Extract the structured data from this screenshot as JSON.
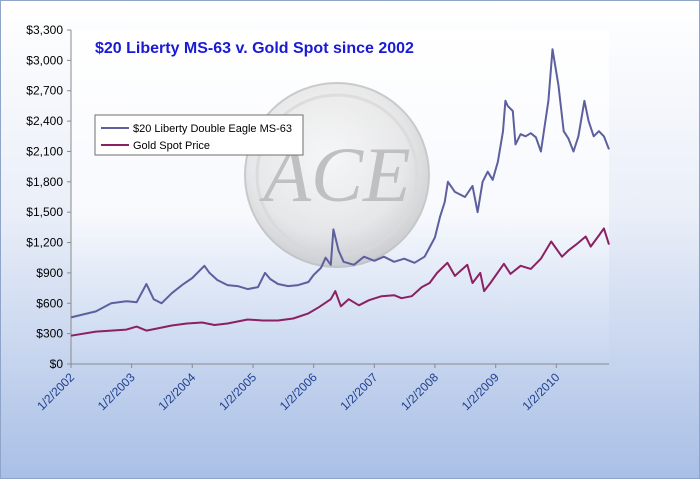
{
  "chart_data": {
    "type": "line",
    "title": "$20 Liberty MS-63 v. Gold Spot since 2002",
    "xlabel": "",
    "ylabel": "",
    "ylim": [
      0,
      3300
    ],
    "y_ticks": [
      "$0",
      "$300",
      "$600",
      "$900",
      "$1,200",
      "$1,500",
      "$1,800",
      "$2,100",
      "$2,400",
      "$2,700",
      "$3,000",
      "$3,300"
    ],
    "y_tick_values": [
      0,
      300,
      600,
      900,
      1200,
      1500,
      1800,
      2100,
      2400,
      2700,
      3000,
      3300
    ],
    "x_tick_labels": [
      "1/2/2002",
      "1/2/2003",
      "1/2/2004",
      "1/2/2005",
      "1/2/2006",
      "1/2/2007",
      "1/2/2008",
      "1/2/2009",
      "1/2/2010"
    ],
    "xlim": [
      "2002-01-02",
      "2010-11-15"
    ],
    "grid": false,
    "legend_position": "upper-left",
    "watermark": "ACE",
    "series": [
      {
        "name": "$20 Liberty Double Eagle MS-63",
        "color": "#5d5f9e",
        "points": [
          [
            "2002-01-02",
            460
          ],
          [
            "2002-06-01",
            520
          ],
          [
            "2002-09-01",
            600
          ],
          [
            "2002-12-01",
            620
          ],
          [
            "2003-02-01",
            610
          ],
          [
            "2003-04-01",
            790
          ],
          [
            "2003-05-15",
            640
          ],
          [
            "2003-07-01",
            600
          ],
          [
            "2003-09-01",
            700
          ],
          [
            "2003-11-01",
            780
          ],
          [
            "2004-01-02",
            850
          ],
          [
            "2004-03-15",
            970
          ],
          [
            "2004-04-15",
            900
          ],
          [
            "2004-06-01",
            830
          ],
          [
            "2004-08-01",
            780
          ],
          [
            "2004-10-01",
            770
          ],
          [
            "2004-12-01",
            740
          ],
          [
            "2005-02-01",
            760
          ],
          [
            "2005-03-15",
            900
          ],
          [
            "2005-04-15",
            840
          ],
          [
            "2005-06-01",
            790
          ],
          [
            "2005-08-01",
            770
          ],
          [
            "2005-10-01",
            780
          ],
          [
            "2005-12-01",
            810
          ],
          [
            "2006-01-02",
            880
          ],
          [
            "2006-02-15",
            950
          ],
          [
            "2006-03-15",
            1050
          ],
          [
            "2006-04-15",
            980
          ],
          [
            "2006-05-01",
            1330
          ],
          [
            "2006-06-01",
            1120
          ],
          [
            "2006-07-01",
            1010
          ],
          [
            "2006-09-01",
            980
          ],
          [
            "2006-11-01",
            1060
          ],
          [
            "2007-01-02",
            1020
          ],
          [
            "2007-03-01",
            1060
          ],
          [
            "2007-05-01",
            1010
          ],
          [
            "2007-07-01",
            1040
          ],
          [
            "2007-09-01",
            1000
          ],
          [
            "2007-11-01",
            1060
          ],
          [
            "2008-01-02",
            1250
          ],
          [
            "2008-02-01",
            1450
          ],
          [
            "2008-03-01",
            1600
          ],
          [
            "2008-03-20",
            1800
          ],
          [
            "2008-05-01",
            1700
          ],
          [
            "2008-07-01",
            1650
          ],
          [
            "2008-08-15",
            1760
          ],
          [
            "2008-09-15",
            1500
          ],
          [
            "2008-10-15",
            1800
          ],
          [
            "2008-11-15",
            1900
          ],
          [
            "2008-12-15",
            1820
          ],
          [
            "2009-01-15",
            2000
          ],
          [
            "2009-02-15",
            2300
          ],
          [
            "2009-03-01",
            2600
          ],
          [
            "2009-03-15",
            2550
          ],
          [
            "2009-04-15",
            2500
          ],
          [
            "2009-05-01",
            2170
          ],
          [
            "2009-06-01",
            2270
          ],
          [
            "2009-07-01",
            2250
          ],
          [
            "2009-08-01",
            2280
          ],
          [
            "2009-09-01",
            2240
          ],
          [
            "2009-10-01",
            2100
          ],
          [
            "2009-11-15",
            2600
          ],
          [
            "2009-12-10",
            3110
          ],
          [
            "2010-01-15",
            2750
          ],
          [
            "2010-02-15",
            2300
          ],
          [
            "2010-03-15",
            2230
          ],
          [
            "2010-04-15",
            2100
          ],
          [
            "2010-05-15",
            2250
          ],
          [
            "2010-06-20",
            2600
          ],
          [
            "2010-07-15",
            2400
          ],
          [
            "2010-08-15",
            2250
          ],
          [
            "2010-09-15",
            2300
          ],
          [
            "2010-10-15",
            2250
          ],
          [
            "2010-11-15",
            2120
          ]
        ]
      },
      {
        "name": "Gold Spot Price",
        "color": "#8b2062",
        "points": [
          [
            "2002-01-02",
            280
          ],
          [
            "2002-06-01",
            320
          ],
          [
            "2002-12-01",
            340
          ],
          [
            "2003-02-01",
            370
          ],
          [
            "2003-04-01",
            330
          ],
          [
            "2003-06-01",
            350
          ],
          [
            "2003-09-01",
            380
          ],
          [
            "2003-12-01",
            400
          ],
          [
            "2004-03-01",
            410
          ],
          [
            "2004-05-15",
            385
          ],
          [
            "2004-08-01",
            400
          ],
          [
            "2004-12-01",
            440
          ],
          [
            "2005-03-01",
            430
          ],
          [
            "2005-06-01",
            430
          ],
          [
            "2005-09-01",
            450
          ],
          [
            "2005-12-01",
            500
          ],
          [
            "2006-02-01",
            560
          ],
          [
            "2006-04-15",
            640
          ],
          [
            "2006-05-12",
            720
          ],
          [
            "2006-06-15",
            570
          ],
          [
            "2006-08-01",
            640
          ],
          [
            "2006-10-01",
            580
          ],
          [
            "2006-12-01",
            630
          ],
          [
            "2007-02-15",
            670
          ],
          [
            "2007-05-01",
            680
          ],
          [
            "2007-06-15",
            650
          ],
          [
            "2007-08-15",
            670
          ],
          [
            "2007-10-15",
            760
          ],
          [
            "2007-12-01",
            800
          ],
          [
            "2008-01-15",
            900
          ],
          [
            "2008-03-17",
            1000
          ],
          [
            "2008-05-01",
            870
          ],
          [
            "2008-07-15",
            980
          ],
          [
            "2008-08-15",
            800
          ],
          [
            "2008-10-01",
            900
          ],
          [
            "2008-10-24",
            720
          ],
          [
            "2008-12-01",
            800
          ],
          [
            "2009-02-20",
            990
          ],
          [
            "2009-04-01",
            890
          ],
          [
            "2009-06-01",
            970
          ],
          [
            "2009-08-01",
            940
          ],
          [
            "2009-10-01",
            1040
          ],
          [
            "2009-12-02",
            1210
          ],
          [
            "2010-02-05",
            1060
          ],
          [
            "2010-03-15",
            1120
          ],
          [
            "2010-05-01",
            1180
          ],
          [
            "2010-06-28",
            1260
          ],
          [
            "2010-07-28",
            1160
          ],
          [
            "2010-09-15",
            1270
          ],
          [
            "2010-10-15",
            1340
          ],
          [
            "2010-11-15",
            1180
          ]
        ]
      }
    ]
  }
}
